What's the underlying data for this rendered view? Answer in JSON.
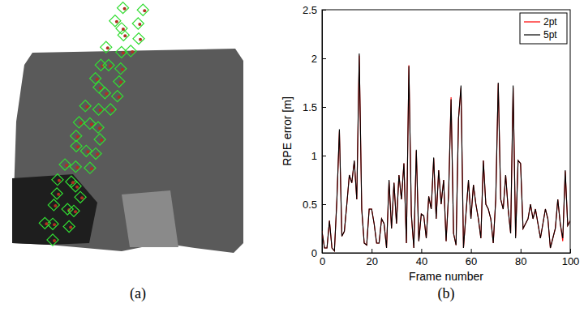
{
  "chart_data": [
    {
      "type": "image",
      "caption": "(a)"
    },
    {
      "type": "line",
      "caption": "(b)",
      "x_label": "Frame number",
      "y_label": "RPE error [m]",
      "xlim": [
        0,
        100
      ],
      "xticks": [
        0,
        20,
        40,
        60,
        80,
        100
      ],
      "ylim": [
        0,
        2.5
      ],
      "yticks": [
        0,
        0.5,
        1,
        1.5,
        2,
        2.5
      ],
      "legend": "northeast",
      "x": [
        0,
        1,
        2,
        3,
        4,
        5,
        6,
        7,
        8,
        9,
        10,
        11,
        12,
        13,
        14,
        15,
        16,
        17,
        18,
        19,
        20,
        21,
        22,
        23,
        24,
        25,
        26,
        27,
        28,
        29,
        30,
        31,
        32,
        33,
        34,
        35,
        36,
        37,
        38,
        39,
        40,
        41,
        42,
        43,
        44,
        45,
        46,
        47,
        48,
        49,
        50,
        51,
        52,
        53,
        54,
        55,
        56,
        57,
        58,
        59,
        60,
        61,
        62,
        63,
        64,
        65,
        66,
        67,
        68,
        69,
        70,
        71,
        72,
        73,
        74,
        75,
        76,
        77,
        78,
        79,
        80,
        81,
        82,
        83,
        84,
        85,
        86,
        87,
        88,
        89,
        90,
        91,
        92,
        93,
        94,
        95,
        96,
        97,
        98,
        99,
        100
      ],
      "series": [
        {
          "name": "2pt",
          "color": "#ff0000",
          "values": [
            0.22,
            0.05,
            0.05,
            0.33,
            0.05,
            0.02,
            0.55,
            1.25,
            0.17,
            0.22,
            0.5,
            0.8,
            0.72,
            0.94,
            0.55,
            2.03,
            0.45,
            0.1,
            0.08,
            0.45,
            0.45,
            0.3,
            0.1,
            0.1,
            0.35,
            0.3,
            0.05,
            0.74,
            0.25,
            0.72,
            0.3,
            0.8,
            0.55,
            0.92,
            0.1,
            1.93,
            0.38,
            0.05,
            1.05,
            0.12,
            0.4,
            0.38,
            0.15,
            0.58,
            0.45,
            0.97,
            0.35,
            0.85,
            0.5,
            0.75,
            0.12,
            0.6,
            1.6,
            0.2,
            0.08,
            1.38,
            1.7,
            0.05,
            0.4,
            0.74,
            0.35,
            0.7,
            0.5,
            0.35,
            0.15,
            0.95,
            0.5,
            0.45,
            0.35,
            0.1,
            0.55,
            1.74,
            0.55,
            0.45,
            0.8,
            0.45,
            0.2,
            1.7,
            0.17,
            0.95,
            0.92,
            0.25,
            0.3,
            0.35,
            0.5,
            0.35,
            0.45,
            0.3,
            0.15,
            0.3,
            0.45,
            0.35,
            0.05,
            0.15,
            0.25,
            0.55,
            0.3,
            0.12,
            0.84,
            0.28,
            0.33
          ]
        },
        {
          "name": "5pt",
          "color": "#000000",
          "values": [
            0.22,
            0.05,
            0.05,
            0.33,
            0.05,
            0.02,
            0.55,
            1.27,
            0.17,
            0.22,
            0.5,
            0.8,
            0.72,
            0.95,
            0.55,
            2.05,
            0.45,
            0.1,
            0.08,
            0.45,
            0.45,
            0.3,
            0.1,
            0.1,
            0.35,
            0.3,
            0.05,
            0.75,
            0.25,
            0.72,
            0.3,
            0.8,
            0.55,
            0.92,
            0.1,
            1.92,
            0.4,
            0.05,
            1.06,
            0.12,
            0.4,
            0.38,
            0.15,
            0.58,
            0.45,
            0.98,
            0.35,
            0.85,
            0.5,
            0.75,
            0.12,
            0.6,
            1.58,
            0.2,
            0.08,
            1.38,
            1.72,
            0.05,
            0.4,
            0.75,
            0.35,
            0.7,
            0.5,
            0.35,
            0.15,
            0.95,
            0.5,
            0.45,
            0.35,
            0.1,
            0.55,
            1.75,
            0.55,
            0.45,
            0.8,
            0.45,
            0.2,
            1.72,
            0.15,
            0.95,
            0.92,
            0.25,
            0.3,
            0.35,
            0.5,
            0.35,
            0.45,
            0.3,
            0.15,
            0.3,
            0.45,
            0.35,
            0.05,
            0.15,
            0.25,
            0.55,
            0.3,
            0.15,
            0.85,
            0.28,
            0.33
          ]
        }
      ]
    }
  ]
}
